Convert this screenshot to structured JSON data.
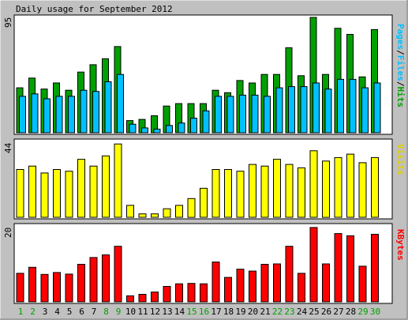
{
  "title": "Daily usage for September 2012",
  "colors": {
    "background": "#c0c0c0",
    "panel": "#ffffff",
    "hits": "#00a000",
    "files": "#00c0ff",
    "visits": "#ffff00",
    "kbytes": "#ff0000",
    "weekend": "#00a000",
    "weekday": "#000000"
  },
  "chart_data": [
    {
      "type": "bar",
      "panel": "top",
      "ymax_label": "95",
      "ylim": [
        0,
        95
      ],
      "legend": [
        "Pages",
        "Files",
        "Hits"
      ],
      "legend_placement": "right",
      "categories": [
        "1",
        "2",
        "3",
        "4",
        "5",
        "6",
        "7",
        "8",
        "9",
        "10",
        "11",
        "12",
        "13",
        "14",
        "15",
        "16",
        "17",
        "18",
        "19",
        "20",
        "21",
        "22",
        "23",
        "24",
        "25",
        "26",
        "27",
        "28",
        "29",
        "30"
      ],
      "series": [
        {
          "name": "Hits",
          "values": [
            37,
            45,
            36,
            41,
            35,
            50,
            56,
            61,
            71,
            10,
            11,
            14,
            22,
            24,
            24,
            24,
            35,
            33,
            43,
            41,
            48,
            48,
            70,
            47,
            95,
            48,
            86,
            81,
            46,
            85
          ]
        },
        {
          "name": "Files",
          "values": [
            30,
            32,
            28,
            30,
            30,
            35,
            34,
            42,
            48,
            7,
            4,
            3,
            6,
            8,
            12,
            18,
            30,
            30,
            31,
            31,
            30,
            37,
            38,
            38,
            41,
            36,
            44,
            44,
            37,
            41
          ]
        }
      ]
    },
    {
      "type": "bar",
      "panel": "middle",
      "ymax_label": "44",
      "ylim": [
        0,
        44
      ],
      "legend": [
        "Visits"
      ],
      "legend_placement": "right",
      "categories": [
        "1",
        "2",
        "3",
        "4",
        "5",
        "6",
        "7",
        "8",
        "9",
        "10",
        "11",
        "12",
        "13",
        "14",
        "15",
        "16",
        "17",
        "18",
        "19",
        "20",
        "21",
        "22",
        "23",
        "24",
        "25",
        "26",
        "27",
        "28",
        "29",
        "30"
      ],
      "series": [
        {
          "name": "Visits",
          "values": [
            28,
            30,
            26,
            28,
            27,
            34,
            30,
            36,
            43,
            7,
            2,
            2,
            5,
            7,
            11,
            17,
            28,
            28,
            27,
            31,
            30,
            34,
            31,
            29,
            39,
            33,
            35,
            37,
            32,
            35
          ]
        }
      ]
    },
    {
      "type": "bar",
      "panel": "bottom",
      "ymax_label": "20",
      "ylim": [
        0,
        20
      ],
      "legend": [
        "KBytes"
      ],
      "legend_placement": "right",
      "categories": [
        "1",
        "2",
        "3",
        "4",
        "5",
        "6",
        "7",
        "8",
        "9",
        "10",
        "11",
        "12",
        "13",
        "14",
        "15",
        "16",
        "17",
        "18",
        "19",
        "20",
        "21",
        "22",
        "23",
        "24",
        "25",
        "26",
        "27",
        "28",
        "29",
        "30"
      ],
      "series": [
        {
          "name": "KBytes",
          "values": [
            7.6,
            9.2,
            7.3,
            7.8,
            7.4,
            10.0,
            11.8,
            12.5,
            14.8,
            1.6,
            2.0,
            2.6,
            4.1,
            4.8,
            4.9,
            4.8,
            10.6,
            6.5,
            8.7,
            8.2,
            10.0,
            10.1,
            14.8,
            7.6,
            19.8,
            10.1,
            18.2,
            17.6,
            9.5,
            18.0
          ]
        }
      ]
    }
  ],
  "day_labels": [
    "1",
    "2",
    "3",
    "4",
    "5",
    "6",
    "7",
    "8",
    "9",
    "10",
    "11",
    "12",
    "13",
    "14",
    "15",
    "16",
    "17",
    "18",
    "19",
    "20",
    "21",
    "22",
    "23",
    "24",
    "25",
    "26",
    "27",
    "28",
    "29",
    "30"
  ],
  "weekend_days": [
    "1",
    "2",
    "8",
    "9",
    "15",
    "16",
    "22",
    "23",
    "29",
    "30"
  ]
}
